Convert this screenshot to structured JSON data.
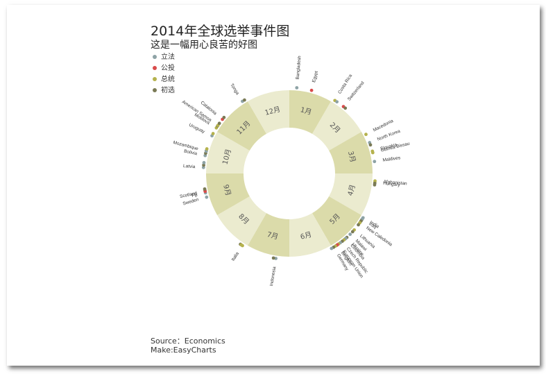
{
  "chart_data": {
    "type": "radial-dot",
    "title": "2014年全球选举事件图",
    "subtitle": "这是一幅用心良苦的好图",
    "legend": [
      {
        "name": "立法",
        "color": "#8ea3a6"
      },
      {
        "name": "公投",
        "color": "#d94b4b"
      },
      {
        "name": "总统",
        "color": "#b5b24d"
      },
      {
        "name": "初选",
        "color": "#7a7a55"
      }
    ],
    "months": [
      "1月",
      "2月",
      "3月",
      "4月",
      "5月",
      "6月",
      "7月",
      "8月",
      "9月",
      "10月",
      "11月",
      "12月"
    ],
    "ring_colors": [
      "#dbdbaa",
      "#ebebcf"
    ],
    "events": [
      {
        "country": "Bangladesh",
        "month": 1,
        "day": 5,
        "type": "立法"
      },
      {
        "country": "Egypt",
        "month": 1,
        "day": 15,
        "type": "公投"
      },
      {
        "country": "Costa Rica",
        "month": 2,
        "day": 2,
        "type": "总统"
      },
      {
        "country": "Costa Rica",
        "month": 2,
        "day": 2,
        "type": "立法"
      },
      {
        "country": "Switzerland",
        "month": 2,
        "day": 9,
        "type": "公投"
      },
      {
        "country": "Switzerland",
        "month": 2,
        "day": 9,
        "type": "初选"
      },
      {
        "country": "Macedonia",
        "month": 3,
        "day": 3,
        "type": "总统"
      },
      {
        "country": "North Korea",
        "month": 3,
        "day": 9,
        "type": "立法"
      },
      {
        "country": "North Korea",
        "month": 3,
        "day": 9,
        "type": "初选"
      },
      {
        "country": "Slovakia",
        "month": 3,
        "day": 15,
        "type": "总统"
      },
      {
        "country": "Guinea-Bissau",
        "month": 3,
        "day": 16,
        "type": "总统"
      },
      {
        "country": "Maldives",
        "month": 3,
        "day": 22,
        "type": "立法"
      },
      {
        "country": "Hungary",
        "month": 4,
        "day": 6,
        "type": "总统"
      },
      {
        "country": "Hungary",
        "month": 4,
        "day": 6,
        "type": "初选"
      },
      {
        "country": "Afghanistan",
        "month": 4,
        "day": 5,
        "type": "总统"
      },
      {
        "country": "Afghanistan",
        "month": 4,
        "day": 5,
        "type": "初选"
      },
      {
        "country": "India",
        "month": 5,
        "day": 1,
        "type": "立法"
      },
      {
        "country": "India",
        "month": 5,
        "day": 1,
        "type": "初选"
      },
      {
        "country": "Iraq",
        "month": 5,
        "day": 2,
        "type": "立法"
      },
      {
        "country": "Iraq",
        "month": 5,
        "day": 2,
        "type": "初选"
      },
      {
        "country": "New Caledonia",
        "month": 5,
        "day": 5,
        "type": "总统"
      },
      {
        "country": "New Caledonia",
        "month": 5,
        "day": 5,
        "type": "初选"
      },
      {
        "country": "Lithuania",
        "month": 5,
        "day": 11,
        "type": "总统"
      },
      {
        "country": "Lithuania",
        "month": 5,
        "day": 11,
        "type": "初选"
      },
      {
        "country": "Malawi",
        "month": 5,
        "day": 15,
        "type": "立法"
      },
      {
        "country": "Ukraine",
        "month": 5,
        "day": 18,
        "type": "初选"
      },
      {
        "country": "Ukraine",
        "month": 5,
        "day": 18,
        "type": "立法"
      },
      {
        "country": "Colombia",
        "month": 5,
        "day": 19,
        "type": "立法"
      },
      {
        "country": "Colombia",
        "month": 5,
        "day": 19,
        "type": "总统"
      },
      {
        "country": "Czech Republic",
        "month": 5,
        "day": 22,
        "type": "初选"
      },
      {
        "country": "Czech Republic",
        "month": 5,
        "day": 22,
        "type": "立法"
      },
      {
        "country": "European Union",
        "month": 5,
        "day": 25,
        "type": "总统"
      },
      {
        "country": "European Union",
        "month": 5,
        "day": 25,
        "type": "初选"
      },
      {
        "country": "Belgium",
        "month": 5,
        "day": 26,
        "type": "公投"
      },
      {
        "country": "Belgium",
        "month": 5,
        "day": 26,
        "type": "总统"
      },
      {
        "country": "Germany",
        "month": 5,
        "day": 29,
        "type": "初选"
      },
      {
        "country": "Germany",
        "month": 5,
        "day": 29,
        "type": "立法"
      },
      {
        "country": "Indonesia",
        "month": 7,
        "day": 9,
        "type": "立法"
      },
      {
        "country": "Indonesia",
        "month": 7,
        "day": 9,
        "type": "初选"
      },
      {
        "country": "Italia",
        "month": 8,
        "day": 3,
        "type": "总统"
      },
      {
        "country": "Italia",
        "month": 8,
        "day": 3,
        "type": "初选"
      },
      {
        "country": "Italia",
        "month": 8,
        "day": 4,
        "type": "总统"
      },
      {
        "country": "Fiji",
        "month": 9,
        "day": 17,
        "type": "立法"
      },
      {
        "country": "Fiji",
        "month": 9,
        "day": 17,
        "type": "初选"
      },
      {
        "country": "Sweden",
        "month": 9,
        "day": 14,
        "type": "立法"
      },
      {
        "country": "Scotland",
        "month": 9,
        "day": 18,
        "type": "公投"
      },
      {
        "country": "Scotland",
        "month": 9,
        "day": 18,
        "type": "初选"
      },
      {
        "country": "Latvia",
        "month": 10,
        "day": 4,
        "type": "立法"
      },
      {
        "country": "Latvia",
        "month": 10,
        "day": 4,
        "type": "初选"
      },
      {
        "country": "Latvia",
        "month": 10,
        "day": 4,
        "type": "立法"
      },
      {
        "country": "Bolivia",
        "month": 10,
        "day": 12,
        "type": "立法"
      },
      {
        "country": "Bolivia",
        "month": 10,
        "day": 12,
        "type": "初选"
      },
      {
        "country": "Bolivia",
        "month": 10,
        "day": 12,
        "type": "初选"
      },
      {
        "country": "Mozambique",
        "month": 10,
        "day": 15,
        "type": "立法"
      },
      {
        "country": "Mozambique",
        "month": 10,
        "day": 15,
        "type": "总统"
      },
      {
        "country": "Uruguay",
        "month": 10,
        "day": 26,
        "type": "立法"
      },
      {
        "country": "Uruguay",
        "month": 10,
        "day": 26,
        "type": "总统"
      },
      {
        "country": "Moldova",
        "month": 11,
        "day": 2,
        "type": "总统"
      },
      {
        "country": "Moldova",
        "month": 11,
        "day": 2,
        "type": "初选"
      },
      {
        "country": "American Samoa",
        "month": 11,
        "day": 4,
        "type": "总统"
      },
      {
        "country": "American Samoa",
        "month": 11,
        "day": 4,
        "type": "初选"
      },
      {
        "country": "Catalonia",
        "month": 11,
        "day": 9,
        "type": "公投"
      },
      {
        "country": "Catalonia",
        "month": 11,
        "day": 9,
        "type": "初选"
      },
      {
        "country": "Tonga",
        "month": 11,
        "day": 27,
        "type": "立法"
      },
      {
        "country": "Tonga",
        "month": 11,
        "day": 27,
        "type": "初选"
      }
    ],
    "labels": [
      {
        "text": "Bangladesh",
        "month": 1,
        "day": 5
      },
      {
        "text": "Egypt",
        "month": 1,
        "day": 15
      },
      {
        "text": "Costa Rica",
        "month": 2,
        "day": 2
      },
      {
        "text": "Switzerland",
        "month": 2,
        "day": 9
      },
      {
        "text": "Macedonia",
        "month": 3,
        "day": 3
      },
      {
        "text": "North Korea",
        "month": 3,
        "day": 9
      },
      {
        "text": "Slovakia",
        "month": 3,
        "day": 15
      },
      {
        "text": "Guinea-Bissau",
        "month": 3,
        "day": 16
      },
      {
        "text": "Maldives",
        "month": 3,
        "day": 22
      },
      {
        "text": "Hungary",
        "month": 4,
        "day": 6
      },
      {
        "text": "Afghanistan",
        "month": 4,
        "day": 5
      },
      {
        "text": "India",
        "month": 5,
        "day": 1
      },
      {
        "text": "Iraq",
        "month": 5,
        "day": 2
      },
      {
        "text": "New Caledonia",
        "month": 5,
        "day": 5
      },
      {
        "text": "Lithuania",
        "month": 5,
        "day": 11
      },
      {
        "text": "Malawi",
        "month": 5,
        "day": 15
      },
      {
        "text": "Ukraine",
        "month": 5,
        "day": 18
      },
      {
        "text": "Colombia",
        "month": 5,
        "day": 19
      },
      {
        "text": "Czech Republic",
        "month": 5,
        "day": 22
      },
      {
        "text": "European Union",
        "month": 5,
        "day": 25
      },
      {
        "text": "Belgium",
        "month": 5,
        "day": 26
      },
      {
        "text": "Germany",
        "month": 5,
        "day": 29
      },
      {
        "text": "Indonesia",
        "month": 7,
        "day": 9
      },
      {
        "text": "Italia",
        "month": 8,
        "day": 3
      },
      {
        "text": "Fiji",
        "month": 9,
        "day": 17
      },
      {
        "text": "Sweden",
        "month": 9,
        "day": 14
      },
      {
        "text": "Scotland",
        "month": 9,
        "day": 18
      },
      {
        "text": "Latvia",
        "month": 10,
        "day": 4
      },
      {
        "text": "Bolivia",
        "month": 10,
        "day": 12
      },
      {
        "text": "Mozambique",
        "month": 10,
        "day": 15
      },
      {
        "text": "Uruguay",
        "month": 10,
        "day": 26
      },
      {
        "text": "Moldova",
        "month": 11,
        "day": 2
      },
      {
        "text": "American Samoa",
        "month": 11,
        "day": 4
      },
      {
        "text": "Catalonia",
        "month": 11,
        "day": 9
      },
      {
        "text": "Tonga",
        "month": 11,
        "day": 27
      }
    ],
    "source": "Source：Economics",
    "credit": "Make:EasyCharts"
  }
}
